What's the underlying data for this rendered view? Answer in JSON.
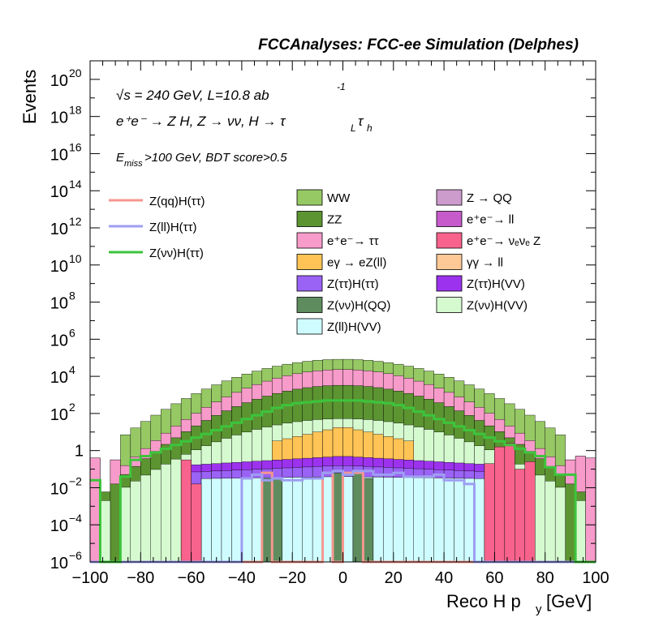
{
  "chart_data": {
    "type": "histogram",
    "title": "FCCAnalyses: FCC-ee Simulation (Delphes)",
    "xlabel": "Reco H p",
    "xlabel_sub": "y",
    "xlabel_unit": "[GeV]",
    "ylabel": "Events",
    "xlim": [
      -100,
      100
    ],
    "ylim": [
      1e-06,
      1e+21
    ],
    "y_scale": "log",
    "x_ticks": [
      "−100",
      "−80",
      "−60",
      "−40",
      "−20",
      "0",
      "20",
      "40",
      "60",
      "80",
      "100"
    ],
    "y_ticks": [
      {
        "value": 1e-06,
        "base": "10",
        "exp": "−6"
      },
      {
        "value": 0.0001,
        "base": "10",
        "exp": "−4"
      },
      {
        "value": 0.01,
        "base": "10",
        "exp": "−2"
      },
      {
        "value": 1,
        "base": "1",
        "exp": ""
      },
      {
        "value": 100.0,
        "base": "10",
        "exp": "2"
      },
      {
        "value": 10000.0,
        "base": "10",
        "exp": "4"
      },
      {
        "value": 1000000.0,
        "base": "10",
        "exp": "6"
      },
      {
        "value": 100000000.0,
        "base": "10",
        "exp": "8"
      },
      {
        "value": 10000000000.0,
        "base": "10",
        "exp": "10"
      },
      {
        "value": 1000000000000.0,
        "base": "10",
        "exp": "12"
      },
      {
        "value": 100000000000000.0,
        "base": "10",
        "exp": "14"
      },
      {
        "value": 1e+16,
        "base": "10",
        "exp": "16"
      },
      {
        "value": 1e+18,
        "base": "10",
        "exp": "18"
      },
      {
        "value": 1e+20,
        "base": "10",
        "exp": "20"
      }
    ],
    "annotations": {
      "energy": "√s = 240 GeV, L=10.8 ab",
      "energy_exp": "-1",
      "process": "e⁺e⁻ → Z H, Z → νν, H → τ",
      "process_sub1": "L",
      "process_tau2": "τ",
      "process_sub2": "h",
      "cuts_prefix": "E",
      "cuts_sub": "miss",
      "cuts_rest": ">100 GeV, BDT score>0.5"
    },
    "bin_edges": [
      -100,
      -96,
      -92,
      -88,
      -84,
      -80,
      -76,
      -72,
      -68,
      -64,
      -60,
      -56,
      -52,
      -48,
      -44,
      -40,
      -36,
      -32,
      -28,
      -24,
      -20,
      -16,
      -12,
      -8,
      -4,
      0,
      4,
      8,
      12,
      16,
      20,
      24,
      28,
      32,
      36,
      40,
      44,
      48,
      52,
      56,
      60,
      64,
      68,
      72,
      76,
      80,
      84,
      88,
      92,
      96,
      100
    ],
    "stack_colors": {
      "WW": "#96c864",
      "ZZ": "#5c9431",
      "ee_tautau": "#f79bca",
      "egamma": "#ffc455",
      "Ztautau_Htautau": "#9a62f5",
      "ZnunuHQQ": "#5e8c5e",
      "ZllHVV": "#cffcff",
      "Z_QQ": "#cc9ccc",
      "ee_ll": "#c75bcc",
      "ee_nunuZ": "#f7638c",
      "gammagamma_ll": "#ffc897",
      "Ztautau_HVV": "#9c32ee",
      "ZnunuHVV": "#d6fad0"
    },
    "stack_totals_log10": [
      [
        -6,
        -0.5,
        -6
      ],
      [
        -0.5,
        -0.5,
        -2.3
      ],
      [
        -0.5,
        -0.5,
        -2.3
      ],
      [
        -0.5,
        1.0,
        -0.8
      ],
      [
        1.0,
        1.4,
        -0.3
      ],
      [
        1.4,
        1.9,
        0.0
      ],
      [
        1.9,
        2.3,
        0.2
      ],
      [
        2.3,
        2.7,
        0.4
      ],
      [
        2.7,
        3.0,
        0.7
      ],
      [
        3.0,
        3.3,
        1.0
      ],
      [
        3.3,
        3.5,
        1.3
      ],
      [
        3.5,
        3.7,
        1.6
      ],
      [
        3.7,
        3.9,
        1.9
      ],
      [
        3.9,
        4.0,
        2.1
      ],
      [
        4.0,
        4.2,
        2.3
      ],
      [
        4.2,
        4.3,
        2.5
      ],
      [
        4.3,
        4.4,
        2.6
      ],
      [
        4.4,
        4.5,
        2.7
      ],
      [
        4.5,
        4.6,
        2.8
      ],
      [
        4.6,
        4.7,
        2.9
      ],
      [
        4.7,
        4.75,
        2.9
      ],
      [
        4.75,
        4.8,
        2.9
      ],
      [
        4.8,
        4.85,
        2.9
      ],
      [
        4.85,
        4.9,
        2.9
      ],
      [
        4.9,
        4.92,
        2.9
      ]
    ],
    "series": [
      {
        "name": "WW",
        "color": "#96c864",
        "legend": "WW"
      },
      {
        "name": "ZZ",
        "color": "#5c9431",
        "legend": "ZZ"
      },
      {
        "name": "e⁺e⁻→ ττ",
        "color": "#f79bca",
        "legend": "e⁺e⁻→ ττ"
      },
      {
        "name": "eγ → eZ(ll)",
        "color": "#ffc455",
        "legend": "eγ → eZ(ll)"
      },
      {
        "name": "Z(ττ)H(ττ)",
        "color": "#9a62f5",
        "legend": "Z(ττ)H(ττ)"
      },
      {
        "name": "Z(νν)H(QQ)",
        "color": "#5e8c5e",
        "legend": "Z(νν)H(QQ)"
      },
      {
        "name": "Z(ll)H(VV)",
        "color": "#cffcff",
        "legend": "Z(ll)H(VV)"
      },
      {
        "name": "Z → QQ",
        "color": "#cc9ccc",
        "legend": "Z → QQ"
      },
      {
        "name": "e⁺e⁻→ ll",
        "color": "#c75bcc",
        "legend": "e⁺e⁻→ ll"
      },
      {
        "name": "e⁺e⁻→ νₑνₑ Z",
        "color": "#f7638c",
        "legend": "e⁺e⁻→ νₑνₑ Z"
      },
      {
        "name": "γγ → ll",
        "color": "#ffc897",
        "legend": "γγ → ll"
      },
      {
        "name": "Z(ττ)H(VV)",
        "color": "#9c32ee",
        "legend": "Z(ττ)H(VV)"
      },
      {
        "name": "Z(νν)H(VV)",
        "color": "#d6fad0",
        "legend": "Z(νν)H(VV)"
      }
    ],
    "signals": [
      {
        "name": "Z(qq)H(ττ)",
        "color": "#f5978f",
        "legend": "Z(qq)H(ττ)"
      },
      {
        "name": "Z(ll)H(ττ)",
        "color": "#9e9ef2",
        "legend": "Z(ll)H(ττ)"
      },
      {
        "name": "Z(νν)H(ττ)",
        "color": "#3cc43c",
        "legend": "Z(νν)H(ττ)"
      }
    ],
    "signal_values_log10": {
      "Z(νν)H(ττ)": [
        -1.6,
        -6,
        -6,
        -1.4,
        -0.5,
        -0.3,
        -0.1,
        0.1,
        0.3,
        0.5,
        0.7,
        0.9,
        1.1,
        1.3,
        1.5,
        1.7,
        1.9,
        2.1,
        2.3,
        2.45,
        2.55,
        2.6,
        2.65,
        2.7,
        2.7,
        2.7,
        2.7,
        2.65,
        2.6,
        2.55,
        2.45,
        2.3,
        2.1,
        1.9,
        1.7,
        1.5,
        1.3,
        1.1,
        0.9,
        0.7,
        0.5,
        0.3,
        0.1,
        -0.1,
        -0.3,
        -0.9,
        -1.3,
        -1.3,
        -6,
        -6
      ],
      "Z(ll)H(ττ)": [
        -6,
        -6,
        -6,
        -6,
        -6,
        -6,
        -6,
        -6,
        -6,
        -6,
        -6,
        -6,
        -6,
        -6,
        -6,
        -1.5,
        -1.3,
        -1.6,
        -1.5,
        -1.6,
        -1.6,
        -1.5,
        -1.5,
        -1.2,
        -1.1,
        -1.3,
        -1.1,
        -1.1,
        -1.3,
        -1.3,
        -1.2,
        -1.4,
        -1.4,
        -1.4,
        -1.3,
        -1.6,
        -1.6,
        -1.8,
        -6,
        -6,
        -6,
        -6,
        -6,
        -6,
        -6,
        -6,
        -6,
        -6,
        -6,
        -6
      ],
      "Z(qq)H(ττ)": [
        -6,
        -6,
        -6,
        -6,
        -6,
        -6,
        -6,
        -6,
        -6,
        -6,
        -6,
        -6,
        -6,
        -6,
        -6,
        -6,
        -6,
        -1.2,
        -6,
        -6,
        -6,
        -6,
        -6,
        -1.2,
        -6,
        -1.2,
        -1.2,
        -6,
        -6,
        -6,
        -6,
        -6,
        -6,
        -6,
        -6,
        -6,
        -6,
        -6,
        -6,
        -6,
        -6,
        -6,
        -6,
        -6,
        -6,
        -6,
        -6,
        -6,
        -6,
        -6
      ]
    }
  }
}
